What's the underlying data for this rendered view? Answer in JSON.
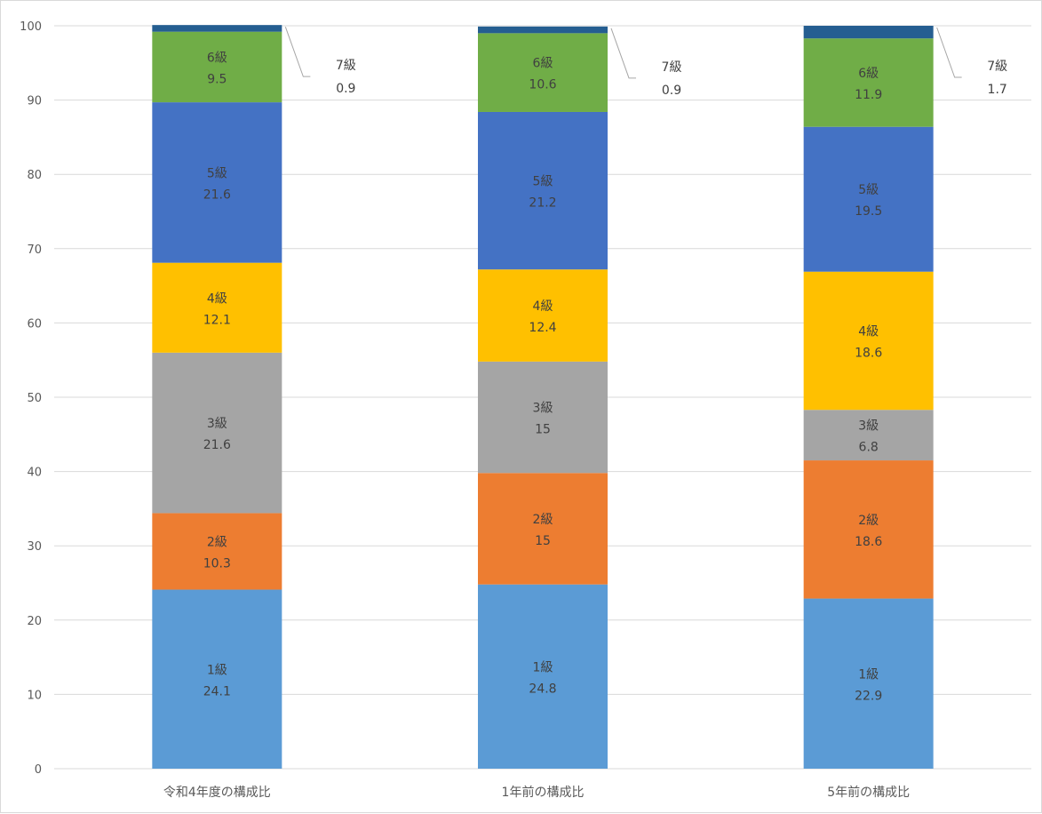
{
  "chart_data": {
    "type": "bar",
    "stacked": true,
    "categories": [
      "令和4年度の構成比",
      "1年前の構成比",
      "5年前の構成比"
    ],
    "ylim": [
      0,
      100
    ],
    "yticks": [
      0,
      10,
      20,
      30,
      40,
      50,
      60,
      70,
      80,
      90,
      100
    ],
    "grid": true,
    "series": [
      {
        "name": "1級",
        "values": [
          24.1,
          24.8,
          22.9
        ],
        "value_labels": [
          "24.1",
          "24.8",
          "22.9"
        ],
        "color": "#5b9bd5"
      },
      {
        "name": "2級",
        "values": [
          10.3,
          15,
          18.6
        ],
        "value_labels": [
          "10.3",
          "15",
          "18.6"
        ],
        "color": "#ed7d31"
      },
      {
        "name": "3級",
        "values": [
          21.6,
          15,
          6.8
        ],
        "value_labels": [
          "21.6",
          "15",
          "6.8"
        ],
        "color": "#a5a5a5"
      },
      {
        "name": "4級",
        "values": [
          12.1,
          12.4,
          18.6
        ],
        "value_labels": [
          "12.1",
          "12.4",
          "18.6"
        ],
        "color": "#ffc000"
      },
      {
        "name": "5級",
        "values": [
          21.6,
          21.2,
          19.5
        ],
        "value_labels": [
          "21.6",
          "21.2",
          "19.5"
        ],
        "color": "#4472c4"
      },
      {
        "name": "6級",
        "values": [
          9.5,
          10.6,
          11.9
        ],
        "value_labels": [
          "9.5",
          "10.6",
          "11.9"
        ],
        "color": "#70ad47"
      },
      {
        "name": "7級",
        "values": [
          0.9,
          0.9,
          1.7
        ],
        "value_labels": [
          "0.9",
          "0.9",
          "1.7"
        ],
        "color": "#255e91",
        "label_style": "callout"
      }
    ]
  }
}
